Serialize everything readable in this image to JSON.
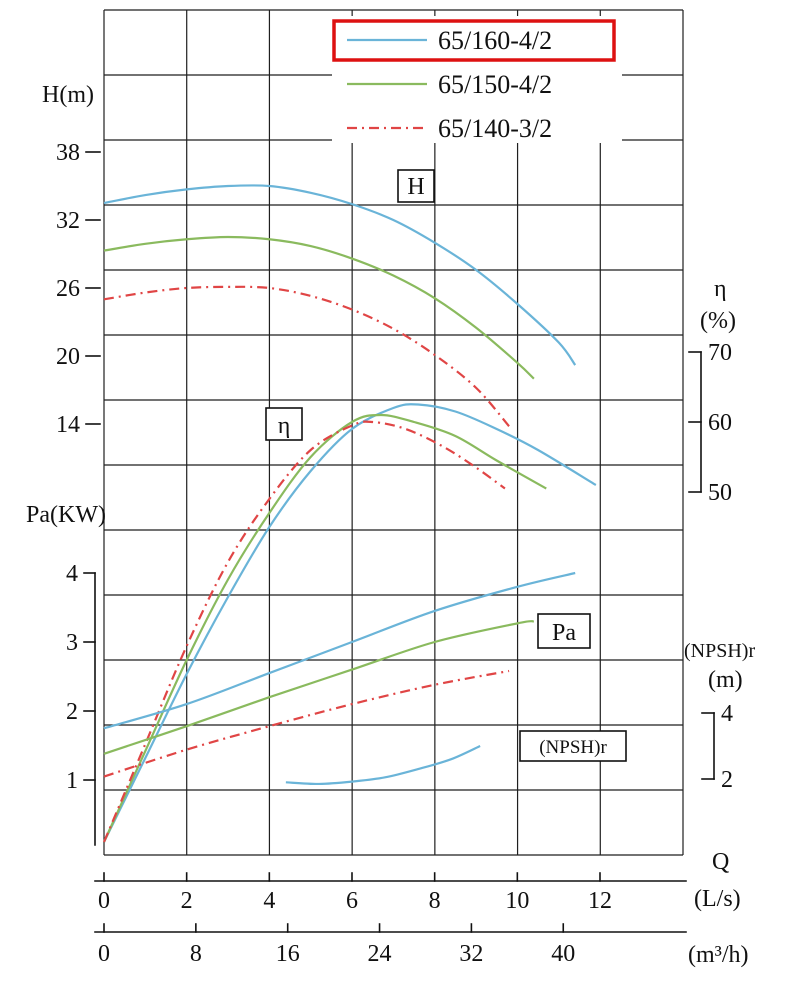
{
  "chart_data": {
    "type": "line",
    "title": "",
    "x_axis_primary": {
      "name": "Q",
      "unit": "(L/s)",
      "ticks": [
        0,
        2,
        4,
        6,
        8,
        10,
        12
      ],
      "range": [
        0,
        14
      ]
    },
    "x_axis_secondary": {
      "unit": "(m³/h)",
      "ticks": [
        0,
        8,
        16,
        24,
        32,
        40
      ]
    },
    "y_axes": {
      "head": {
        "label": "H(m)",
        "ticks": [
          38,
          32,
          26,
          20,
          14
        ]
      },
      "power": {
        "label": "Pa(KW)",
        "ticks": [
          4,
          3,
          2,
          1
        ]
      },
      "efficiency": {
        "label": "η",
        "unit": "(%)",
        "ticks": [
          70,
          60,
          50
        ]
      },
      "npshr": {
        "label": "(NPSH)r",
        "unit": "(m)",
        "ticks": [
          4,
          2
        ]
      }
    },
    "legend": [
      {
        "label": "65/160-4/2",
        "color": "#6ab4d8",
        "style": "solid",
        "highlighted": true
      },
      {
        "label": "65/150-4/2",
        "color": "#8aba5e",
        "style": "solid",
        "highlighted": false
      },
      {
        "label": "65/140-3/2",
        "color": "#e04545",
        "style": "dashdot",
        "highlighted": false
      }
    ],
    "legend_highlight_color": "#dd1111",
    "curve_labels": {
      "head": "H",
      "efficiency": "η",
      "power": "Pa",
      "npshr": "(NPSH)r"
    },
    "grid": true,
    "curves": {
      "head": [
        {
          "series": 0,
          "points": [
            [
              0,
              33.5
            ],
            [
              1,
              34.2
            ],
            [
              2,
              34.7
            ],
            [
              3,
              35.0
            ],
            [
              4,
              35.0
            ],
            [
              5,
              34.4
            ],
            [
              6,
              33.4
            ],
            [
              7,
              32.0
            ],
            [
              8,
              30.0
            ],
            [
              9,
              27.6
            ],
            [
              10,
              24.6
            ],
            [
              11,
              21.2
            ],
            [
              11.4,
              19.2
            ]
          ]
        },
        {
          "series": 1,
          "points": [
            [
              0,
              29.3
            ],
            [
              1,
              29.9
            ],
            [
              2,
              30.3
            ],
            [
              3,
              30.5
            ],
            [
              4,
              30.3
            ],
            [
              5,
              29.7
            ],
            [
              6,
              28.6
            ],
            [
              7,
              27.1
            ],
            [
              8,
              25.1
            ],
            [
              9,
              22.5
            ],
            [
              10,
              19.4
            ],
            [
              10.4,
              18.0
            ]
          ]
        },
        {
          "series": 2,
          "points": [
            [
              0,
              25.0
            ],
            [
              1,
              25.6
            ],
            [
              2,
              26.0
            ],
            [
              3,
              26.1
            ],
            [
              4,
              26.0
            ],
            [
              5,
              25.3
            ],
            [
              6,
              24.1
            ],
            [
              7,
              22.4
            ],
            [
              8,
              20.1
            ],
            [
              9,
              17.2
            ],
            [
              9.8,
              13.8
            ]
          ]
        }
      ],
      "efficiency": [
        {
          "series": 0,
          "points": [
            [
              0,
              0
            ],
            [
              1,
              12
            ],
            [
              2,
              24
            ],
            [
              3,
              35
            ],
            [
              4,
              45
            ],
            [
              5,
              53
            ],
            [
              6,
              59
            ],
            [
              7,
              62
            ],
            [
              7.6,
              62.5
            ],
            [
              8.5,
              61.5
            ],
            [
              9.5,
              59
            ],
            [
              10.5,
              56
            ],
            [
              11.9,
              51
            ]
          ]
        },
        {
          "series": 1,
          "points": [
            [
              0,
              0
            ],
            [
              1,
              13
            ],
            [
              2,
              26
            ],
            [
              3,
              37.5
            ],
            [
              4,
              47
            ],
            [
              5,
              55
            ],
            [
              6,
              60
            ],
            [
              6.7,
              61
            ],
            [
              7.5,
              60
            ],
            [
              8.5,
              58
            ],
            [
              9.5,
              54.5
            ],
            [
              10.7,
              50.5
            ]
          ]
        },
        {
          "series": 2,
          "points": [
            [
              0,
              0
            ],
            [
              1,
              14
            ],
            [
              2,
              28
            ],
            [
              3,
              40
            ],
            [
              4,
              49
            ],
            [
              5,
              56
            ],
            [
              6,
              59.5
            ],
            [
              6.5,
              60
            ],
            [
              7.3,
              59
            ],
            [
              8.2,
              56.5
            ],
            [
              9,
              53.5
            ],
            [
              9.7,
              50.5
            ]
          ]
        }
      ],
      "power": [
        {
          "series": 0,
          "points": [
            [
              0,
              1.75
            ],
            [
              2,
              2.1
            ],
            [
              4,
              2.55
            ],
            [
              6,
              3.0
            ],
            [
              8,
              3.45
            ],
            [
              10,
              3.8
            ],
            [
              11.4,
              4.0
            ]
          ]
        },
        {
          "series": 1,
          "points": [
            [
              0,
              1.38
            ],
            [
              2,
              1.78
            ],
            [
              4,
              2.2
            ],
            [
              6,
              2.6
            ],
            [
              8,
              3.0
            ],
            [
              10,
              3.27
            ],
            [
              10.4,
              3.3
            ]
          ]
        },
        {
          "series": 2,
          "points": [
            [
              0,
              1.05
            ],
            [
              2,
              1.44
            ],
            [
              4,
              1.78
            ],
            [
              6,
              2.1
            ],
            [
              8,
              2.38
            ],
            [
              9.8,
              2.58
            ]
          ]
        }
      ],
      "npshr": [
        {
          "series": 0,
          "points": [
            [
              4.4,
              1.9
            ],
            [
              5.2,
              1.85
            ],
            [
              6,
              1.92
            ],
            [
              6.8,
              2.05
            ],
            [
              7.6,
              2.3
            ],
            [
              8.4,
              2.6
            ],
            [
              9.1,
              3.0
            ]
          ]
        }
      ]
    }
  }
}
